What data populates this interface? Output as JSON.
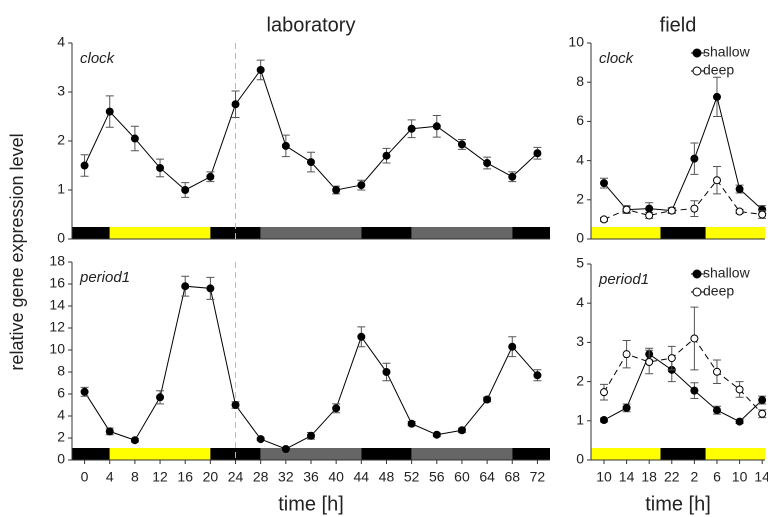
{
  "chart_data": [
    {
      "type": "line",
      "title": "laboratory",
      "annotation": "clock",
      "ylabel": "relative gene expression level",
      "x": [
        0,
        4,
        8,
        12,
        16,
        20,
        24,
        28,
        32,
        36,
        40,
        44,
        48,
        52,
        56,
        60,
        64,
        68,
        72
      ],
      "series": [
        {
          "color": "#000000",
          "marker_fill": "#000000",
          "dashed": false,
          "values": [
            1.5,
            2.6,
            2.05,
            1.45,
            1.0,
            1.27,
            2.75,
            3.45,
            1.9,
            1.57,
            1.0,
            1.1,
            1.7,
            2.25,
            2.3,
            1.93,
            1.55,
            1.27,
            1.75
          ],
          "errors": [
            0.22,
            0.32,
            0.25,
            0.18,
            0.15,
            0.1,
            0.27,
            0.2,
            0.22,
            0.2,
            0.08,
            0.1,
            0.15,
            0.18,
            0.22,
            0.1,
            0.12,
            0.1,
            0.12
          ]
        }
      ],
      "xlim": [
        -2,
        74
      ],
      "ylim": [
        0,
        4
      ],
      "yticks": [
        0,
        1,
        2,
        3,
        4
      ],
      "vline": 24,
      "light_bar": [
        {
          "start": -2,
          "end": 4,
          "color": "#000000"
        },
        {
          "start": 4,
          "end": 20,
          "color": "#ffff00"
        },
        {
          "start": 20,
          "end": 28,
          "color": "#000000"
        },
        {
          "start": 28,
          "end": 44,
          "color": "#666666"
        },
        {
          "start": 44,
          "end": 52,
          "color": "#000000"
        },
        {
          "start": 52,
          "end": 68,
          "color": "#666666"
        },
        {
          "start": 68,
          "end": 74,
          "color": "#000000"
        }
      ]
    },
    {
      "type": "line",
      "annotation": "period1",
      "xlabel": "time [h]",
      "x": [
        0,
        4,
        8,
        12,
        16,
        20,
        24,
        28,
        32,
        36,
        40,
        44,
        48,
        52,
        56,
        60,
        64,
        68,
        72
      ],
      "series": [
        {
          "color": "#000000",
          "marker_fill": "#000000",
          "dashed": false,
          "values": [
            6.2,
            2.6,
            1.8,
            5.7,
            15.8,
            15.6,
            5.0,
            1.9,
            1.0,
            2.2,
            4.7,
            11.2,
            8.0,
            3.3,
            2.3,
            2.7,
            5.5,
            10.3,
            7.7
          ],
          "errors": [
            0.4,
            0.3,
            0.15,
            0.6,
            0.9,
            1.0,
            0.3,
            0.1,
            0.1,
            0.3,
            0.4,
            0.9,
            0.8,
            0.2,
            0.15,
            0.2,
            0.2,
            0.9,
            0.5
          ]
        }
      ],
      "xlim": [
        -2,
        74
      ],
      "ylim": [
        0,
        18
      ],
      "yticks": [
        0,
        2,
        4,
        6,
        8,
        10,
        12,
        14,
        16,
        18
      ],
      "xticks": [
        0,
        4,
        8,
        12,
        16,
        20,
        24,
        28,
        32,
        36,
        40,
        44,
        48,
        52,
        56,
        60,
        64,
        68,
        72
      ],
      "vline": 24,
      "light_bar": [
        {
          "start": -2,
          "end": 4,
          "color": "#000000"
        },
        {
          "start": 4,
          "end": 20,
          "color": "#ffff00"
        },
        {
          "start": 20,
          "end": 28,
          "color": "#000000"
        },
        {
          "start": 28,
          "end": 44,
          "color": "#666666"
        },
        {
          "start": 44,
          "end": 52,
          "color": "#000000"
        },
        {
          "start": 52,
          "end": 68,
          "color": "#666666"
        },
        {
          "start": 68,
          "end": 74,
          "color": "#000000"
        }
      ]
    },
    {
      "type": "line",
      "title": "field",
      "annotation": "clock",
      "legend": "upper right",
      "x": [
        10,
        14,
        18,
        22,
        26,
        30,
        34,
        38
      ],
      "series": [
        {
          "name": "shallow",
          "color": "#000000",
          "marker_fill": "#000000",
          "dashed": false,
          "values": [
            2.85,
            1.5,
            1.55,
            1.45,
            4.1,
            7.25,
            2.55,
            1.5
          ],
          "errors": [
            0.25,
            0.15,
            0.3,
            0.1,
            0.8,
            1.0,
            0.2,
            0.2
          ]
        },
        {
          "name": "deep",
          "color": "#000000",
          "marker_fill": "#ffffff",
          "dashed": true,
          "values": [
            1.0,
            1.5,
            1.2,
            1.45,
            1.55,
            3.0,
            1.4,
            1.25
          ],
          "errors": [
            0.1,
            0.2,
            0.15,
            0.15,
            0.4,
            0.7,
            0.1,
            0.2
          ]
        }
      ],
      "xlim": [
        7.7,
        38.5
      ],
      "ylim": [
        0,
        10
      ],
      "yticks": [
        0,
        2,
        4,
        6,
        8,
        10
      ],
      "light_bar": [
        {
          "start": 7.7,
          "end": 20,
          "color": "#ffff00"
        },
        {
          "start": 20,
          "end": 28,
          "color": "#000000"
        },
        {
          "start": 28,
          "end": 38.5,
          "color": "#ffff00"
        }
      ]
    },
    {
      "type": "line",
      "annotation": "period1",
      "xlabel": "time [h]",
      "legend": "upper right",
      "x": [
        10,
        14,
        18,
        22,
        26,
        30,
        34,
        38
      ],
      "series": [
        {
          "name": "shallow",
          "color": "#000000",
          "marker_fill": "#000000",
          "dashed": false,
          "values": [
            1.02,
            1.33,
            2.7,
            2.3,
            1.77,
            1.27,
            0.98,
            1.53
          ],
          "errors": [
            0.05,
            0.1,
            0.15,
            0.3,
            0.2,
            0.1,
            0.05,
            0.1
          ]
        },
        {
          "name": "deep",
          "color": "#000000",
          "marker_fill": "#ffffff",
          "dashed": true,
          "values": [
            1.73,
            2.7,
            2.5,
            2.6,
            3.1,
            2.25,
            1.8,
            1.18
          ],
          "errors": [
            0.2,
            0.35,
            0.3,
            0.3,
            0.8,
            0.3,
            0.2,
            0.1
          ]
        }
      ],
      "xlim": [
        7.7,
        38.5
      ],
      "ylim": [
        0,
        5
      ],
      "yticks": [
        0,
        1,
        2,
        3,
        4,
        5
      ],
      "xticks": [
        10,
        14,
        18,
        22,
        {
          "value": 26,
          "label": "2"
        },
        {
          "value": 30,
          "label": "6"
        },
        {
          "value": 34,
          "label": "10"
        },
        {
          "value": 38,
          "label": "14"
        }
      ],
      "light_bar": [
        {
          "start": 7.7,
          "end": 20,
          "color": "#ffff00"
        },
        {
          "start": 20,
          "end": 28,
          "color": "#000000"
        },
        {
          "start": 28,
          "end": 38.5,
          "color": "#ffff00"
        }
      ]
    }
  ]
}
